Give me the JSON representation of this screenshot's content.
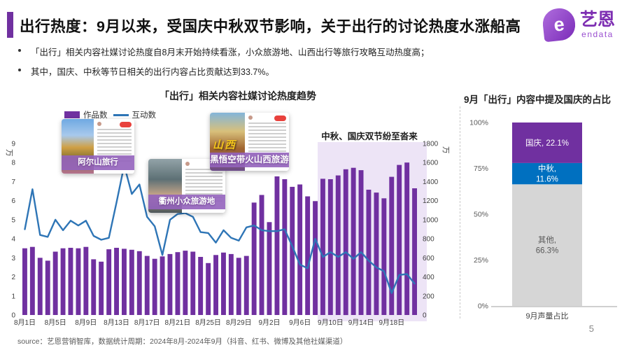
{
  "slide": {
    "accent_color": "#7030A0",
    "title": "出行热度：9月以来，受国庆中秋双节影响，关于出行的讨论热度水涨船高",
    "bullets": [
      "「出行」相关内容社媒讨论热度自8月末开始持续看涨，小众旅游地、山西出行等旅行攻略互动热度高；",
      "其中，国庆、中秋等节日相关的出行内容占比贡献达到33.7%。"
    ],
    "logo": {
      "mark_letter": "e",
      "brand": "艺恩",
      "sub_brand": "endata"
    },
    "source": "source：艺恩营销智库，数据统计周期：2024年8月-2024年9月（抖音、红书、微博及其他社媒渠道）",
    "page_number": "5"
  },
  "chart_data": [
    {
      "type": "bar",
      "subtype": "bar+line combo, dual axis",
      "title": "「出行」相关内容社媒讨论热度趋势",
      "legend": [
        {
          "label": "作品数",
          "marker": "bar",
          "color": "#7030A0"
        },
        {
          "label": "互动数",
          "marker": "line",
          "color": "#2E75B6"
        }
      ],
      "x_dates": [
        "8月1日",
        "8月2日",
        "8月3日",
        "8月4日",
        "8月5日",
        "8月6日",
        "8月7日",
        "8月8日",
        "8月9日",
        "8月10日",
        "8月11日",
        "8月12日",
        "8月13日",
        "8月14日",
        "8月15日",
        "8月16日",
        "8月17日",
        "8月18日",
        "8月19日",
        "8月20日",
        "8月21日",
        "8月22日",
        "8月23日",
        "8月24日",
        "8月25日",
        "8月26日",
        "8月27日",
        "8月28日",
        "8月29日",
        "8月30日",
        "8月31日",
        "9月1日",
        "9月2日",
        "9月3日",
        "9月4日",
        "9月5日",
        "9月6日",
        "9月7日",
        "9月8日",
        "9月9日",
        "9月10日",
        "9月11日",
        "9月12日",
        "9月13日",
        "9月14日",
        "9月15日",
        "9月16日",
        "9月17日",
        "9月18日",
        "9月19日",
        "9月20日",
        "9月21日"
      ],
      "x_tick_labels": [
        "8月1日",
        "8月5日",
        "8月9日",
        "8月13日",
        "8月17日",
        "8月21日",
        "8月25日",
        "8月29日",
        "9月2日",
        "9月6日",
        "9月10日",
        "9月14日",
        "9月18日"
      ],
      "x_tick_every": 4,
      "left_axis": {
        "unit": "万",
        "min": 0,
        "max": 9,
        "tick_step": 1,
        "for_series": "互动数"
      },
      "right_axis": {
        "unit": "万",
        "min": 0,
        "max": 1800,
        "tick_step": 200,
        "for_series": "作品数"
      },
      "series": [
        {
          "name": "作品数",
          "type": "bar",
          "axis": "right",
          "color": "#7030A0",
          "values": [
            700,
            715,
            600,
            570,
            665,
            700,
            705,
            700,
            715,
            585,
            560,
            690,
            705,
            695,
            685,
            670,
            620,
            590,
            615,
            640,
            660,
            675,
            665,
            610,
            545,
            630,
            655,
            640,
            600,
            620,
            1180,
            1260,
            975,
            1455,
            1425,
            1345,
            1370,
            1245,
            1195,
            1430,
            1425,
            1465,
            1530,
            1545,
            1520,
            1315,
            1285,
            1225,
            1450,
            1575,
            1600,
            1330
          ]
        },
        {
          "name": "互动数",
          "type": "line",
          "axis": "left",
          "color": "#2E75B6",
          "values": [
            4.5,
            6.6,
            4.2,
            4.1,
            5.0,
            4.45,
            4.95,
            4.7,
            4.95,
            4.15,
            3.95,
            4.05,
            5.9,
            7.85,
            6.35,
            6.85,
            5.15,
            4.65,
            3.15,
            5.0,
            5.3,
            5.35,
            5.15,
            4.35,
            4.3,
            3.8,
            4.45,
            4.05,
            3.9,
            4.6,
            4.7,
            4.45,
            4.4,
            4.4,
            4.5,
            3.6,
            2.65,
            2.45,
            4.0,
            3.05,
            3.3,
            3.05,
            3.3,
            2.95,
            3.3,
            2.85,
            2.5,
            2.3,
            1.15,
            2.1,
            2.15,
            1.65
          ]
        }
      ],
      "annotation": {
        "text": "中秋、国庆双节纷至沓来",
        "highlight_from_date": "9月9日",
        "highlight_from_index": 39,
        "highlight_color": "#EDE4F6"
      },
      "cards": [
        {
          "label": "阿尔山旅行"
        },
        {
          "label": "衢州小众旅游地"
        },
        {
          "label": "黑悟空带火山西旅游",
          "image_text": "山西"
        }
      ]
    },
    {
      "type": "bar",
      "subtype": "stacked percentage bar",
      "title": "9月「出行」内容中提及国庆的占比",
      "category": "9月声量占比",
      "y_ticks": [
        "0%",
        "25%",
        "50%",
        "75%",
        "100%"
      ],
      "ylim": [
        0,
        100
      ],
      "segments": [
        {
          "label": "其他",
          "value": 66.3,
          "color": "#D6D6D6",
          "text_color": "#595959",
          "display_lines": [
            "其他,",
            "66.3%"
          ]
        },
        {
          "label": "中秋",
          "value": 11.6,
          "color": "#0070C0",
          "text_color": "#FFFFFF",
          "display_lines": [
            "中秋,",
            "11.6%"
          ]
        },
        {
          "label": "国庆",
          "value": 22.1,
          "color": "#7030A0",
          "text_color": "#FFFFFF",
          "display_lines": [
            "国庆, 22.1%"
          ]
        }
      ]
    }
  ]
}
